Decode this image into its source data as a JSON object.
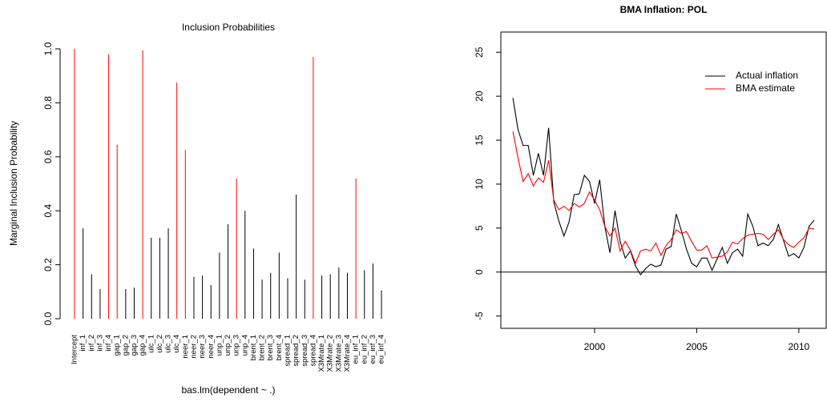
{
  "chart_data": [
    {
      "type": "bar",
      "title": "Inclusion Probabilities",
      "ylabel": "Marginal Inclusion Probability",
      "xlabel": "bas.lm(dependent ~ .)",
      "categories": [
        "Intercept",
        "inf_1",
        "inf_2",
        "inf_3",
        "inf_4",
        "gap_1",
        "gap_2",
        "gap_3",
        "gap_4",
        "ulc_1",
        "ulc_2",
        "ulc_3",
        "ulc_4",
        "neer_1",
        "neer_2",
        "neer_3",
        "neer_4",
        "unp_1",
        "unp_2",
        "unp_3",
        "unp_4",
        "brent_1",
        "brent_2",
        "brent_3",
        "brent_4",
        "spread_1",
        "spread_2",
        "spread_3",
        "spread_4",
        "X3Mrate_1",
        "X3Mrate_2",
        "X3Mrate_3",
        "X3Mrate_4",
        "eu_inf_1",
        "eu_inf_2",
        "eu_inf_3",
        "eu_inf_4"
      ],
      "values": [
        1.0,
        0.335,
        0.165,
        0.11,
        0.98,
        0.645,
        0.11,
        0.115,
        0.995,
        0.3,
        0.3,
        0.335,
        0.875,
        0.625,
        0.155,
        0.16,
        0.125,
        0.245,
        0.35,
        0.52,
        0.4,
        0.26,
        0.145,
        0.17,
        0.245,
        0.15,
        0.46,
        0.145,
        0.97,
        0.16,
        0.165,
        0.19,
        0.17,
        0.52,
        0.18,
        0.205,
        0.105
      ],
      "colors": [
        "#ff0000",
        "#000000",
        "#000000",
        "#000000",
        "#ff0000",
        "#ff0000",
        "#000000",
        "#000000",
        "#ff0000",
        "#000000",
        "#000000",
        "#000000",
        "#ff0000",
        "#ff0000",
        "#000000",
        "#000000",
        "#000000",
        "#000000",
        "#000000",
        "#ff0000",
        "#000000",
        "#000000",
        "#000000",
        "#000000",
        "#000000",
        "#000000",
        "#000000",
        "#000000",
        "#ff0000",
        "#000000",
        "#000000",
        "#000000",
        "#000000",
        "#ff0000",
        "#000000",
        "#000000",
        "#000000"
      ],
      "ylim": [
        -0.04,
        1.04
      ],
      "yticks": [
        {
          "value": 0,
          "label": "0.0"
        },
        0.2,
        0.4,
        0.6,
        0.8,
        {
          "value": 1,
          "label": "1.0"
        }
      ]
    },
    {
      "type": "line",
      "title": "BMA Inflation: POL",
      "x": [
        1996,
        1996.25,
        1996.5,
        1996.75,
        1997,
        1997.25,
        1997.5,
        1997.75,
        1998,
        1998.25,
        1998.5,
        1998.75,
        1999,
        1999.25,
        1999.5,
        1999.75,
        2000,
        2000.25,
        2000.5,
        2000.75,
        2001,
        2001.25,
        2001.5,
        2001.75,
        2002,
        2002.25,
        2002.5,
        2002.75,
        2003,
        2003.25,
        2003.5,
        2003.75,
        2004,
        2004.25,
        2004.5,
        2004.75,
        2005,
        2005.25,
        2005.5,
        2005.75,
        2006,
        2006.25,
        2006.5,
        2006.75,
        2007,
        2007.25,
        2007.5,
        2007.75,
        2008,
        2008.25,
        2008.5,
        2008.75,
        2009,
        2009.25,
        2009.5,
        2009.75,
        2010,
        2010.25,
        2010.5,
        2010.75
      ],
      "series": [
        {
          "name": "Actual inflation",
          "color": "#000000",
          "values": [
            19.8,
            16.2,
            14.4,
            14.4,
            11.0,
            13.5,
            11.0,
            16.4,
            8.0,
            5.8,
            4.1,
            5.7,
            8.8,
            8.9,
            11.0,
            10.3,
            7.8,
            10.5,
            5.2,
            2.2,
            7.0,
            3.5,
            1.6,
            2.4,
            0.7,
            -0.3,
            0.4,
            0.9,
            0.6,
            0.8,
            2.6,
            2.9,
            6.6,
            4.7,
            2.6,
            1.0,
            0.6,
            1.6,
            1.6,
            0.2,
            1.5,
            2.8,
            1.0,
            2.2,
            2.6,
            1.8,
            6.6,
            5.2,
            3.0,
            3.3,
            3.0,
            3.7,
            5.4,
            3.6,
            1.8,
            2.1,
            1.6,
            2.8,
            5.2,
            5.9
          ]
        },
        {
          "name": "BMA estimate",
          "color": "#ff0000",
          "values": [
            16.0,
            13.0,
            10.3,
            11.2,
            9.8,
            10.7,
            10.2,
            12.7,
            8.2,
            7.1,
            7.5,
            7.0,
            7.8,
            7.4,
            7.8,
            9.1,
            8.2,
            7.1,
            5.2,
            4.1,
            5.0,
            2.4,
            3.5,
            2.5,
            1.0,
            2.4,
            2.6,
            2.4,
            3.3,
            1.9,
            3.0,
            3.7,
            4.8,
            4.4,
            4.6,
            3.5,
            2.5,
            2.5,
            3.0,
            1.6,
            1.7,
            1.8,
            2.3,
            3.4,
            3.2,
            3.8,
            4.2,
            4.3,
            4.4,
            4.3,
            3.7,
            4.3,
            4.8,
            3.7,
            3.1,
            2.8,
            3.4,
            3.9,
            5.0,
            4.9
          ]
        }
      ],
      "hline": 0,
      "legend": "topright",
      "xlim": [
        1995.41,
        2011.34
      ],
      "xticks": [
        2000,
        2005,
        2010
      ],
      "ylim": [
        -6.4,
        27.3
      ],
      "yticks": [
        -5,
        0,
        5,
        10,
        15,
        20,
        25
      ]
    }
  ]
}
